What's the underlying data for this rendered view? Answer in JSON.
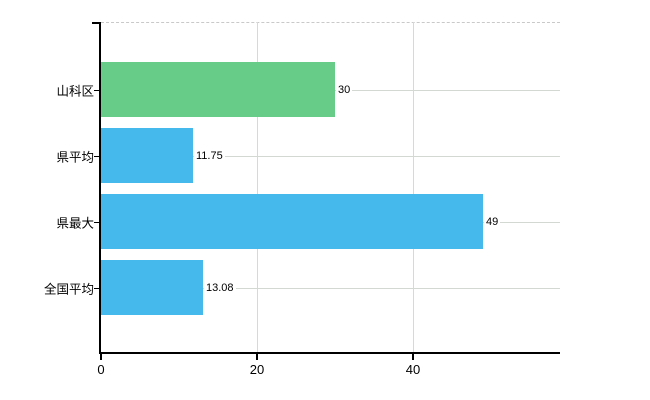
{
  "chart_data": {
    "type": "bar",
    "orientation": "horizontal",
    "title": "",
    "categories": [
      "山科区",
      "県平均",
      "県最大",
      "全国平均"
    ],
    "values": [
      30,
      11.75,
      49,
      13.08
    ],
    "value_labels": [
      "30",
      "11.75",
      "49",
      "13.08"
    ],
    "bar_colors": [
      "#66cc88",
      "#45b8ec",
      "#45b8ec",
      "#45b8ec"
    ],
    "x_tick_values": [
      0,
      20,
      40
    ],
    "x_tick_labels": [
      "0",
      "20",
      "40"
    ],
    "xlim": [
      0,
      58.8
    ],
    "ylabel": "",
    "xlabel": "",
    "legend": "none",
    "grid": "on",
    "axis_color": "#000000",
    "gridline_color": "#d6d6d6",
    "plot_border_top_style": "dashed"
  }
}
